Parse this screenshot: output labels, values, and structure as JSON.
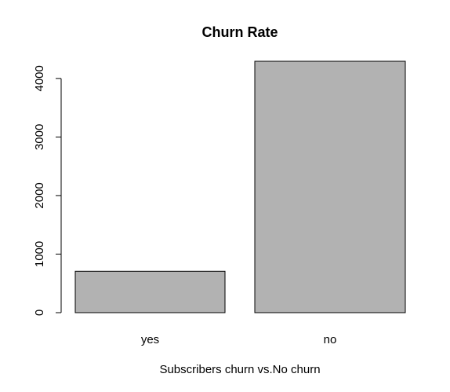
{
  "chart_data": {
    "type": "bar",
    "title": "Churn Rate",
    "xlabel": "Subscribers churn vs.No churn",
    "ylabel": "",
    "categories": [
      "yes",
      "no"
    ],
    "values": [
      707,
      4293
    ],
    "ylim": [
      0,
      4293
    ],
    "yticks": [
      0,
      1000,
      2000,
      3000,
      4000
    ],
    "ytick_labels": [
      "0",
      "1000",
      "2000",
      "3000",
      "4000"
    ],
    "grid": false,
    "legend": "none",
    "bar_color": "#b2b2b2",
    "bar_border_color": "#000000"
  }
}
